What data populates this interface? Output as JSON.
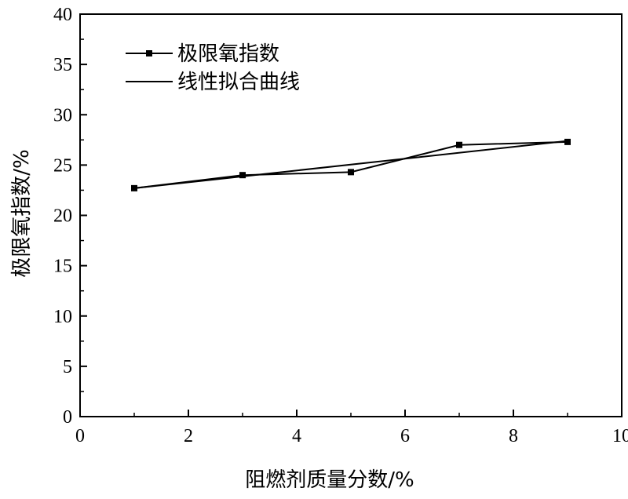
{
  "chart_data": {
    "type": "line",
    "xlabel": "阻燃剂质量分数/%",
    "ylabel": "极限氧指数/%",
    "xlim": [
      0,
      10
    ],
    "ylim": [
      0,
      40
    ],
    "x_ticks": [
      "0",
      "2",
      "4",
      "6",
      "8",
      "10"
    ],
    "y_ticks": [
      "0",
      "5",
      "10",
      "15",
      "20",
      "25",
      "30",
      "35",
      "40"
    ],
    "grid": false,
    "legend_position": "top-left",
    "series": [
      {
        "name": "极限氧指数",
        "style": "line-square-markers",
        "color": "#000000",
        "x": [
          1,
          3,
          5,
          7,
          9
        ],
        "y": [
          22.7,
          24.0,
          24.3,
          27.0,
          27.3
        ]
      },
      {
        "name": "线性拟合曲线",
        "style": "line",
        "color": "#000000",
        "x": [
          1,
          9
        ],
        "y": [
          22.7,
          27.4
        ]
      }
    ]
  }
}
